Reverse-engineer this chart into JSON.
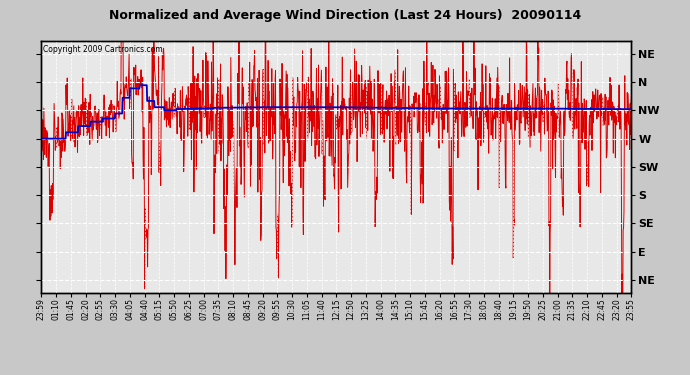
{
  "title": "Normalized and Average Wind Direction (Last 24 Hours)  20090114",
  "copyright_text": "Copyright 2009 Cartronics.com",
  "background_color": "#c8c8c8",
  "plot_bg_color": "#e8e8e8",
  "grid_color": "#ffffff",
  "ytick_labels_right": [
    "NE",
    "N",
    "NW",
    "W",
    "SW",
    "S",
    "SE",
    "E",
    "NE"
  ],
  "ytick_values": [
    0,
    45,
    90,
    135,
    180,
    225,
    270,
    315,
    360
  ],
  "ylim": [
    -20,
    380
  ],
  "xtick_labels": [
    "23:59",
    "01:10",
    "01:45",
    "02:20",
    "02:55",
    "03:30",
    "04:05",
    "04:40",
    "05:15",
    "05:50",
    "06:25",
    "07:00",
    "07:35",
    "08:10",
    "08:45",
    "09:20",
    "09:55",
    "10:30",
    "11:05",
    "11:40",
    "12:15",
    "12:50",
    "13:25",
    "14:00",
    "14:35",
    "15:10",
    "15:45",
    "16:20",
    "16:55",
    "17:30",
    "18:05",
    "18:40",
    "19:15",
    "19:50",
    "20:25",
    "21:00",
    "21:35",
    "22:10",
    "22:45",
    "23:20",
    "23:55"
  ],
  "red_line_color": "#dd0000",
  "blue_line_color": "#0000cc",
  "red_linewidth": 0.7,
  "blue_linewidth": 1.3
}
